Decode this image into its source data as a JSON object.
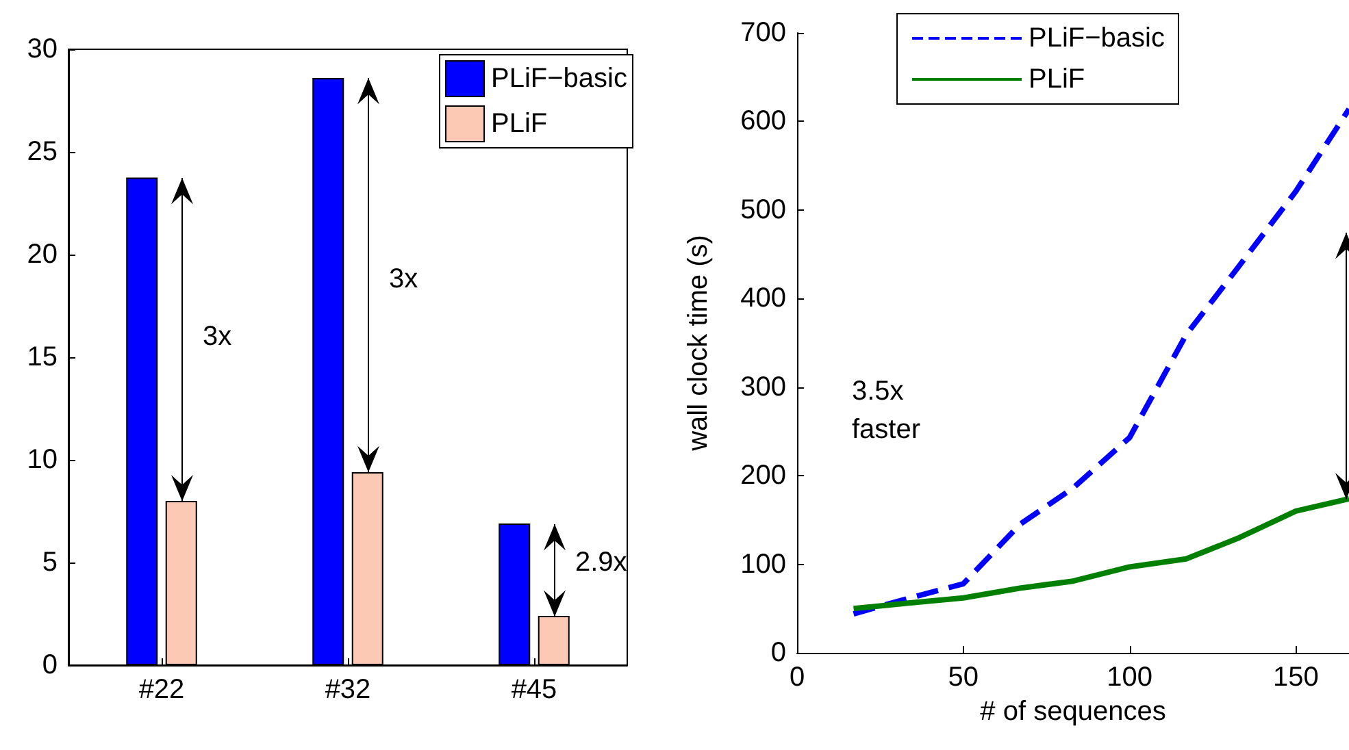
{
  "chart_data": [
    {
      "type": "bar",
      "categories": [
        "#22",
        "#32",
        "#45"
      ],
      "series": [
        {
          "name": "PLiF−basic",
          "color": "#0000ff",
          "values": [
            23.75,
            28.6,
            6.9
          ]
        },
        {
          "name": "PLiF",
          "color": "#fccab4",
          "values": [
            8.0,
            9.4,
            2.4
          ]
        }
      ],
      "ylim": [
        0,
        30
      ],
      "yticks": [
        0,
        5,
        10,
        15,
        20,
        25,
        30
      ],
      "grid": false,
      "legend": "top right",
      "annotations": [
        {
          "text": "3x",
          "x": "#22",
          "y": 16
        },
        {
          "text": "3x",
          "x": "#32",
          "y": 18.8
        },
        {
          "text": "2.9x",
          "x": "#45",
          "y": 5
        }
      ]
    },
    {
      "type": "line",
      "x": [
        17,
        33,
        50,
        67,
        83,
        100,
        117,
        133,
        150,
        166
      ],
      "series": [
        {
          "name": "PLiF−basic",
          "color": "#0000ff",
          "line_style": "dashed",
          "values": [
            44,
            61,
            78,
            145,
            186,
            243,
            359,
            437,
            521,
            614
          ]
        },
        {
          "name": "PLiF",
          "color": "#007f00",
          "line_style": "solid",
          "values": [
            50,
            56,
            62,
            73,
            81,
            97,
            106,
            130,
            160,
            174
          ]
        }
      ],
      "xlim": [
        0,
        166
      ],
      "xticks": [
        0,
        50,
        100,
        150
      ],
      "ylim": [
        0,
        700
      ],
      "yticks": [
        0,
        100,
        200,
        300,
        400,
        500,
        600,
        700
      ],
      "xlabel": "# of sequences",
      "ylabel": "wall clock time (s)",
      "grid": false,
      "legend": "top",
      "marker": "none",
      "annotations": [
        "3.5x\nfaster"
      ]
    }
  ]
}
